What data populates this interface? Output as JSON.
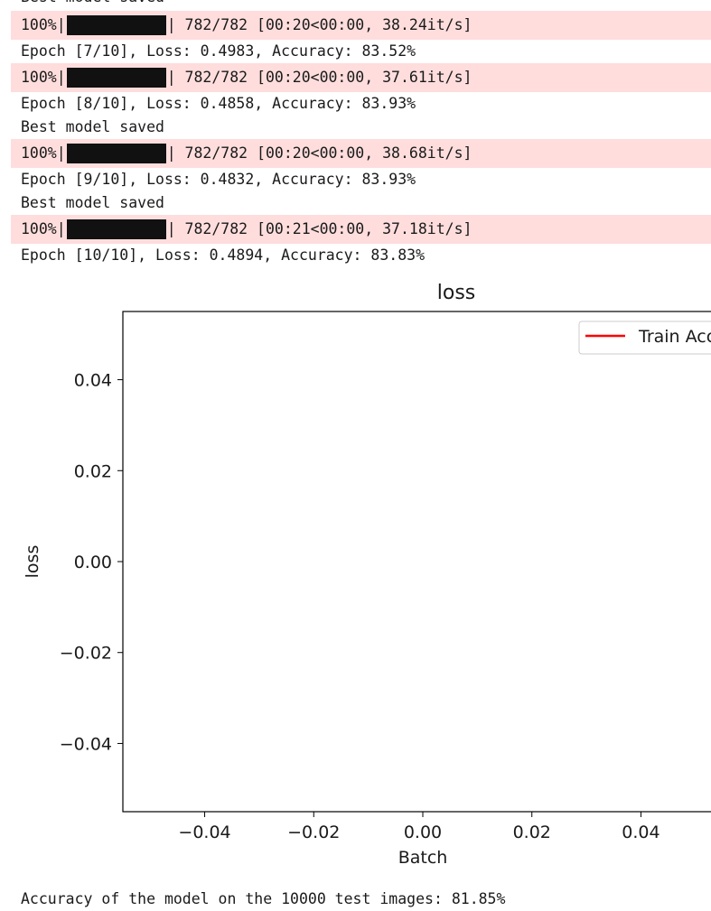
{
  "output": {
    "top_partial": "Best model saved",
    "entries": [
      {
        "progress": {
          "percent": "100%",
          "fraction": 1.0,
          "stats": "| 782/782 [00:20<00:00, 38.24it/s]"
        },
        "epoch": "Epoch [7/10], Loss: 0.4983, Accuracy: 83.52%",
        "saved": ""
      },
      {
        "progress": {
          "percent": "100%",
          "fraction": 1.0,
          "stats": "| 782/782 [00:20<00:00, 37.61it/s]"
        },
        "epoch": "Epoch [8/10], Loss: 0.4858, Accuracy: 83.93%",
        "saved": "Best model saved"
      },
      {
        "progress": {
          "percent": "100%",
          "fraction": 1.0,
          "stats": "| 782/782 [00:20<00:00, 38.68it/s]"
        },
        "epoch": "Epoch [9/10], Loss: 0.4832, Accuracy: 83.93%",
        "saved": "Best model saved"
      },
      {
        "progress": {
          "percent": "100%",
          "fraction": 1.0,
          "stats": "| 782/782 [00:21<00:00, 37.18it/s]"
        },
        "epoch": "Epoch [10/10], Loss: 0.4894, Accuracy: 83.83%",
        "saved": ""
      }
    ],
    "final": "Accuracy of the model on the 10000 test images: 81.85%"
  },
  "chart_data": {
    "type": "line",
    "title": "loss",
    "xlabel": "Batch",
    "ylabel": "loss",
    "xlim": [
      -0.055,
      0.055
    ],
    "ylim": [
      -0.055,
      0.055
    ],
    "xticks": [
      -0.04,
      -0.02,
      0.0,
      0.02,
      0.04
    ],
    "xtick_labels": [
      "−0.04",
      "−0.02",
      "0.00",
      "0.02",
      "0.04"
    ],
    "yticks": [
      0.04,
      0.02,
      0.0,
      -0.02,
      -0.04
    ],
    "ytick_labels": [
      "0.04",
      "0.02",
      "0.00",
      "−0.02",
      "−0.04"
    ],
    "grid": false,
    "legend_position": "top-right",
    "series": [
      {
        "name": "Train Accuracy",
        "color": "#ff0000",
        "x": [],
        "y": []
      }
    ]
  }
}
